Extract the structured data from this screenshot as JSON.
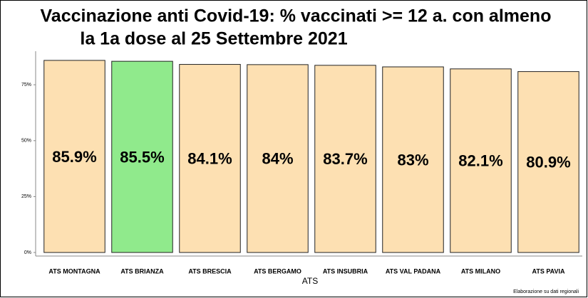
{
  "chart_data": {
    "type": "bar",
    "title": [
      "Vaccinazione anti Covid-19: % vaccinati >= 12 a. con almeno",
      "la 1a dose al 25 Settembre 2021"
    ],
    "x_label": "ATS",
    "caption": "Elaborazione su dati regionali",
    "categories": [
      "ATS MONTAGNA",
      "ATS BRIANZA",
      "ATS BRESCIA",
      "ATS BERGAMO",
      "ATS INSUBRIA",
      "ATS VAL PADANA",
      "ATS MILANO",
      "ATS PAVIA"
    ],
    "values": [
      85.9,
      85.5,
      84.1,
      84,
      83.7,
      83,
      82.1,
      80.9
    ],
    "value_labels": [
      "85.9%",
      "85.5%",
      "84.1%",
      "84%",
      "83.7%",
      "83%",
      "82.1%",
      "80.9%"
    ],
    "colors": [
      "#fde0b2",
      "#90ea8c",
      "#fde0b2",
      "#fde0b2",
      "#fde0b2",
      "#fde0b2",
      "#fde0b2",
      "#fde0b2"
    ],
    "ylim": [
      0,
      90
    ],
    "yticks": [
      {
        "value": 0,
        "label": "0%"
      },
      {
        "value": 25,
        "label": "25%"
      },
      {
        "value": 50,
        "label": "50%"
      },
      {
        "value": 75,
        "label": "75%"
      }
    ]
  }
}
